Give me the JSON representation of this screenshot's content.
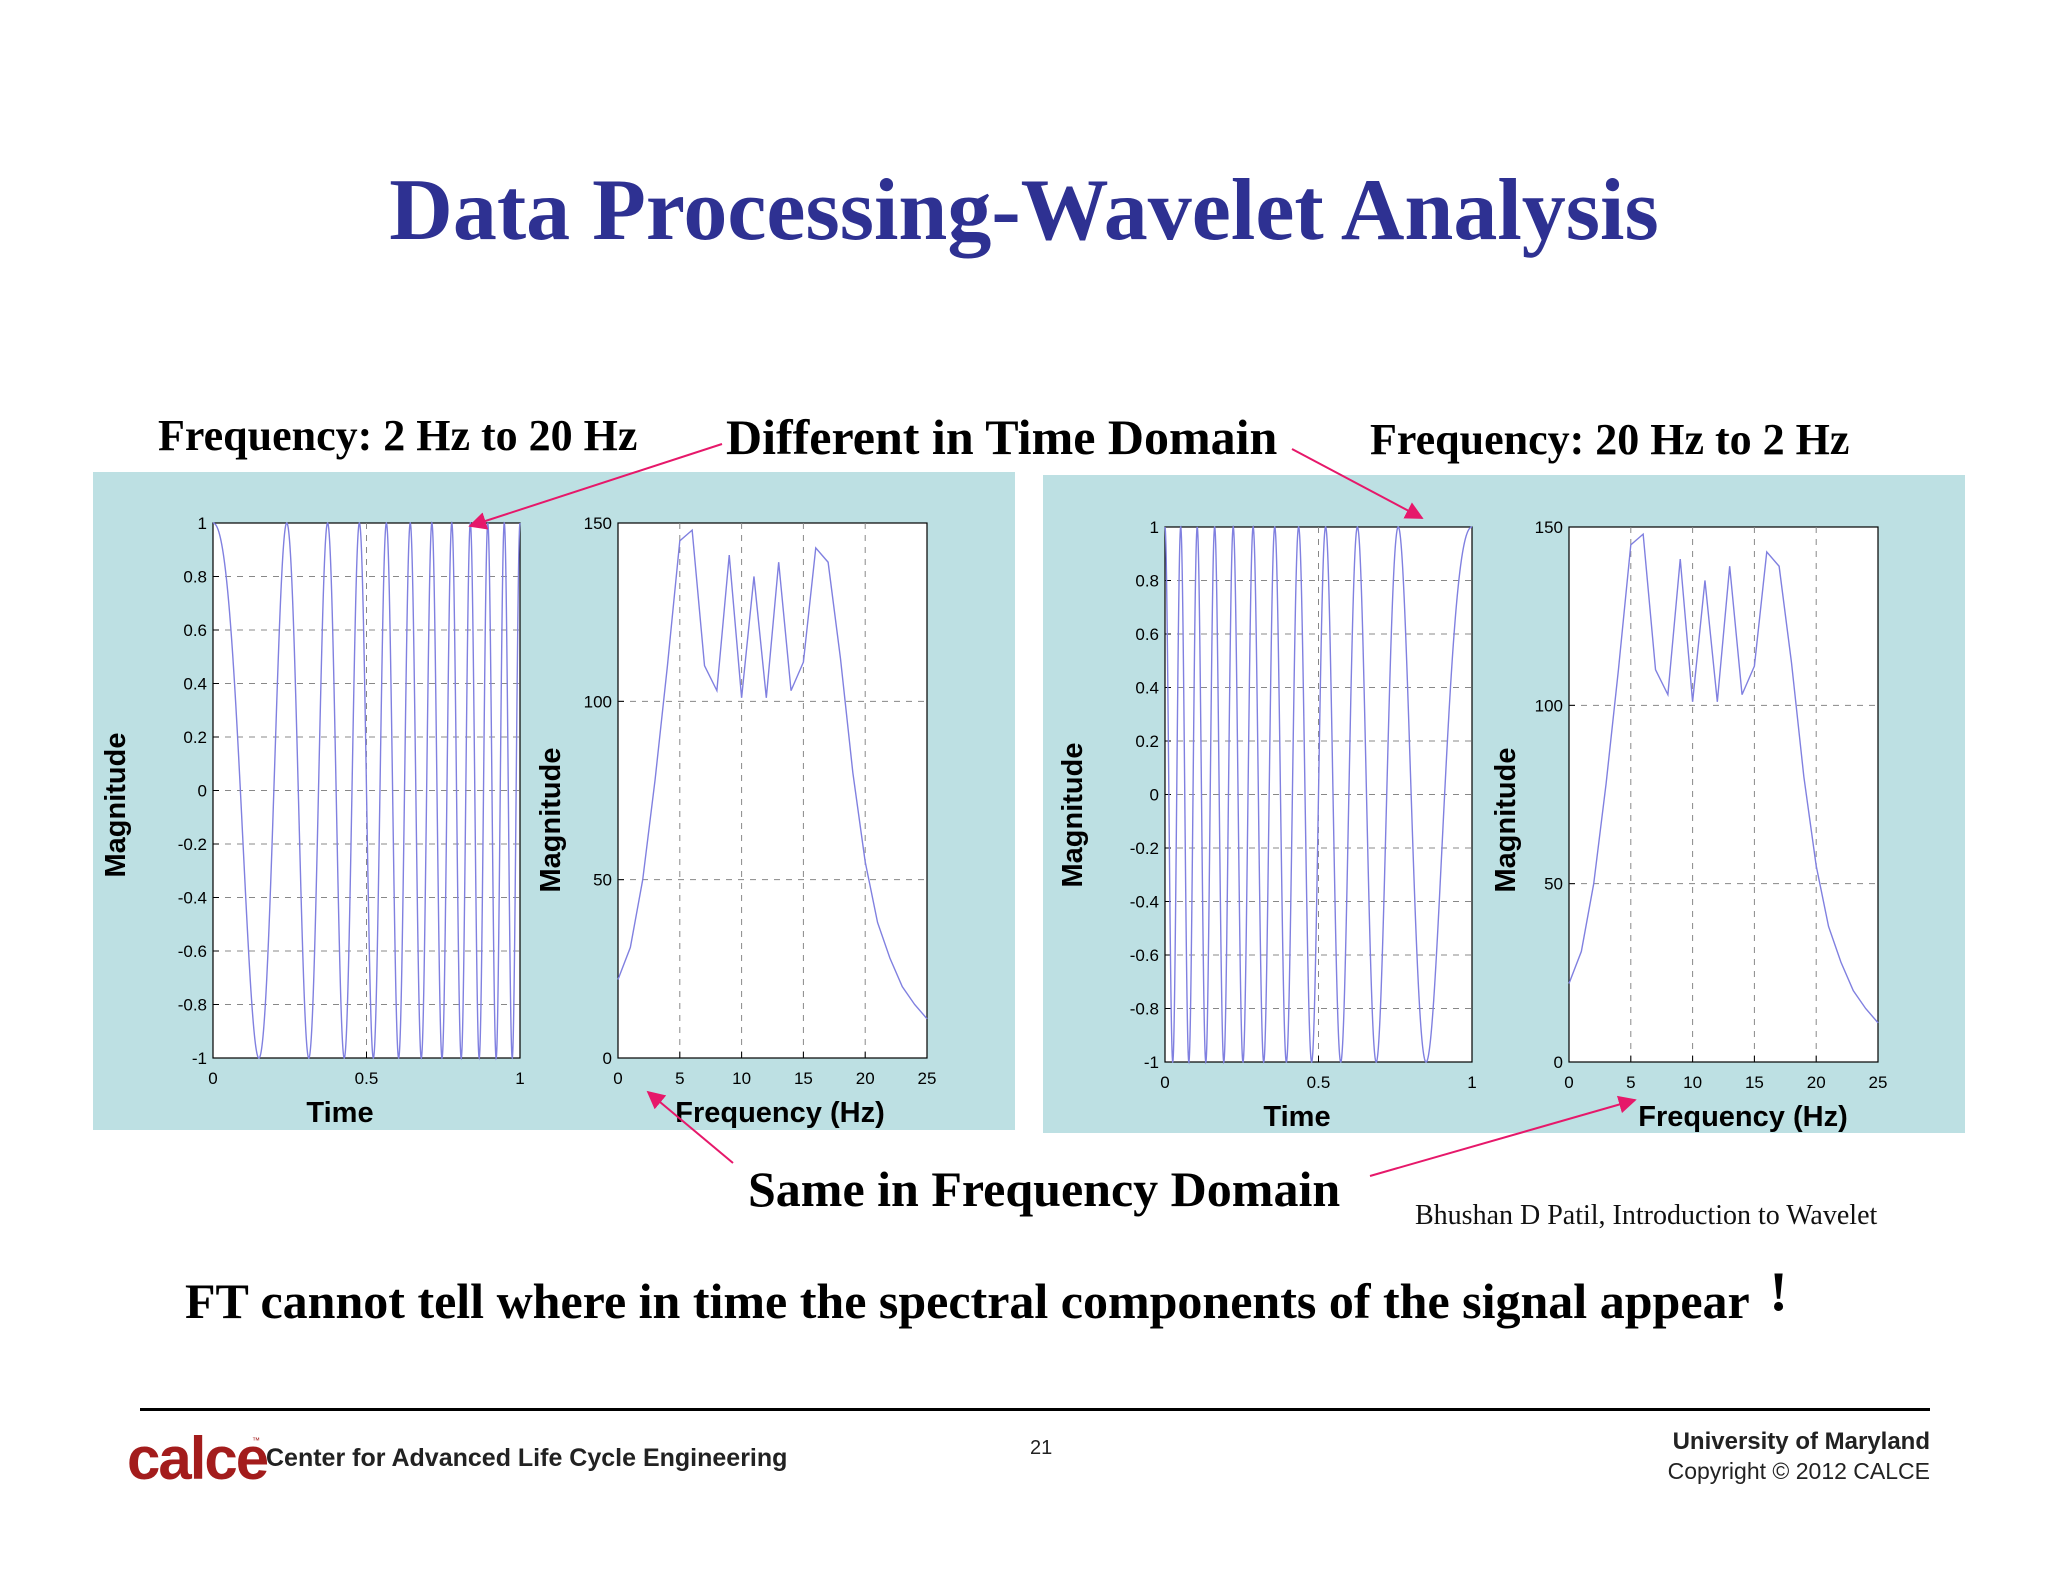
{
  "slide": {
    "title": "Data Processing-Wavelet Analysis",
    "left_heading": "Frequency: 2 Hz to 20 Hz",
    "right_heading": "Frequency: 20 Hz to 2 Hz",
    "callout_top": "Different in Time Domain",
    "callout_bottom": "Same in Frequency Domain",
    "citation": "Bhushan D Patil, Introduction to Wavelet",
    "conclusion": "FT cannot tell where in time the spectral components of the signal appear",
    "conclusion_mark": "!",
    "arrow_color": "#e6186a",
    "panel_color": "#bde0e3",
    "signal_color": "#8080e0"
  },
  "footer": {
    "logo": "calce",
    "logo_tm": "™",
    "center_name": "Center for Advanced Life Cycle Engineering",
    "page_number": "21",
    "university": "University of Maryland",
    "copyright": "Copyright © 2012 CALCE"
  },
  "chart_data": [
    {
      "type": "line",
      "xlabel": "Time",
      "ylabel": "Magnitude",
      "xlim": [
        0,
        1
      ],
      "ylim": [
        -1,
        1
      ],
      "xticks": [
        "0",
        "0.5",
        "1"
      ],
      "yticks": [
        "-1",
        "-0.8",
        "-0.6",
        "-0.4",
        "-0.2",
        "0",
        "0.2",
        "0.4",
        "0.6",
        "0.8",
        "1"
      ],
      "grid": true,
      "signal": "chirp",
      "frequency_start_hz": 2,
      "frequency_end_hz": 20
    },
    {
      "type": "line",
      "xlabel": "Frequency (Hz)",
      "ylabel": "Magnitude",
      "xlim": [
        0,
        25
      ],
      "ylim": [
        0,
        150
      ],
      "xticks": [
        "0",
        "5",
        "10",
        "15",
        "20",
        "25"
      ],
      "yticks": [
        "0",
        "50",
        "100",
        "150"
      ],
      "grid": true,
      "x": [
        0,
        1,
        2,
        3,
        4,
        5,
        6,
        7,
        8,
        9,
        10,
        11,
        12,
        13,
        14,
        15,
        16,
        17,
        18,
        19,
        20,
        21,
        22,
        23,
        24,
        25
      ],
      "y": [
        22,
        31,
        50,
        78,
        110,
        145,
        148,
        110,
        103,
        141,
        101,
        135,
        101,
        139,
        103,
        111,
        143,
        139,
        112,
        80,
        55,
        38,
        28,
        20,
        15,
        11
      ]
    },
    {
      "type": "line",
      "xlabel": "Time",
      "ylabel": "Magnitude",
      "xlim": [
        0,
        1
      ],
      "ylim": [
        -1,
        1
      ],
      "xticks": [
        "0",
        "0.5",
        "1"
      ],
      "yticks": [
        "-1",
        "-0.8",
        "-0.6",
        "-0.4",
        "-0.2",
        "0",
        "0.2",
        "0.4",
        "0.6",
        "0.8",
        "1"
      ],
      "grid": true,
      "signal": "chirp",
      "frequency_start_hz": 20,
      "frequency_end_hz": 2
    },
    {
      "type": "line",
      "xlabel": "Frequency (Hz)",
      "ylabel": "Magnitude",
      "xlim": [
        0,
        25
      ],
      "ylim": [
        0,
        150
      ],
      "xticks": [
        "0",
        "5",
        "10",
        "15",
        "20",
        "25"
      ],
      "yticks": [
        "0",
        "50",
        "100",
        "150"
      ],
      "grid": true,
      "x": [
        0,
        1,
        2,
        3,
        4,
        5,
        6,
        7,
        8,
        9,
        10,
        11,
        12,
        13,
        14,
        15,
        16,
        17,
        18,
        19,
        20,
        21,
        22,
        23,
        24,
        25
      ],
      "y": [
        22,
        31,
        50,
        78,
        110,
        145,
        148,
        110,
        103,
        141,
        101,
        135,
        101,
        139,
        103,
        111,
        143,
        139,
        112,
        80,
        55,
        38,
        28,
        20,
        15,
        11
      ]
    }
  ]
}
